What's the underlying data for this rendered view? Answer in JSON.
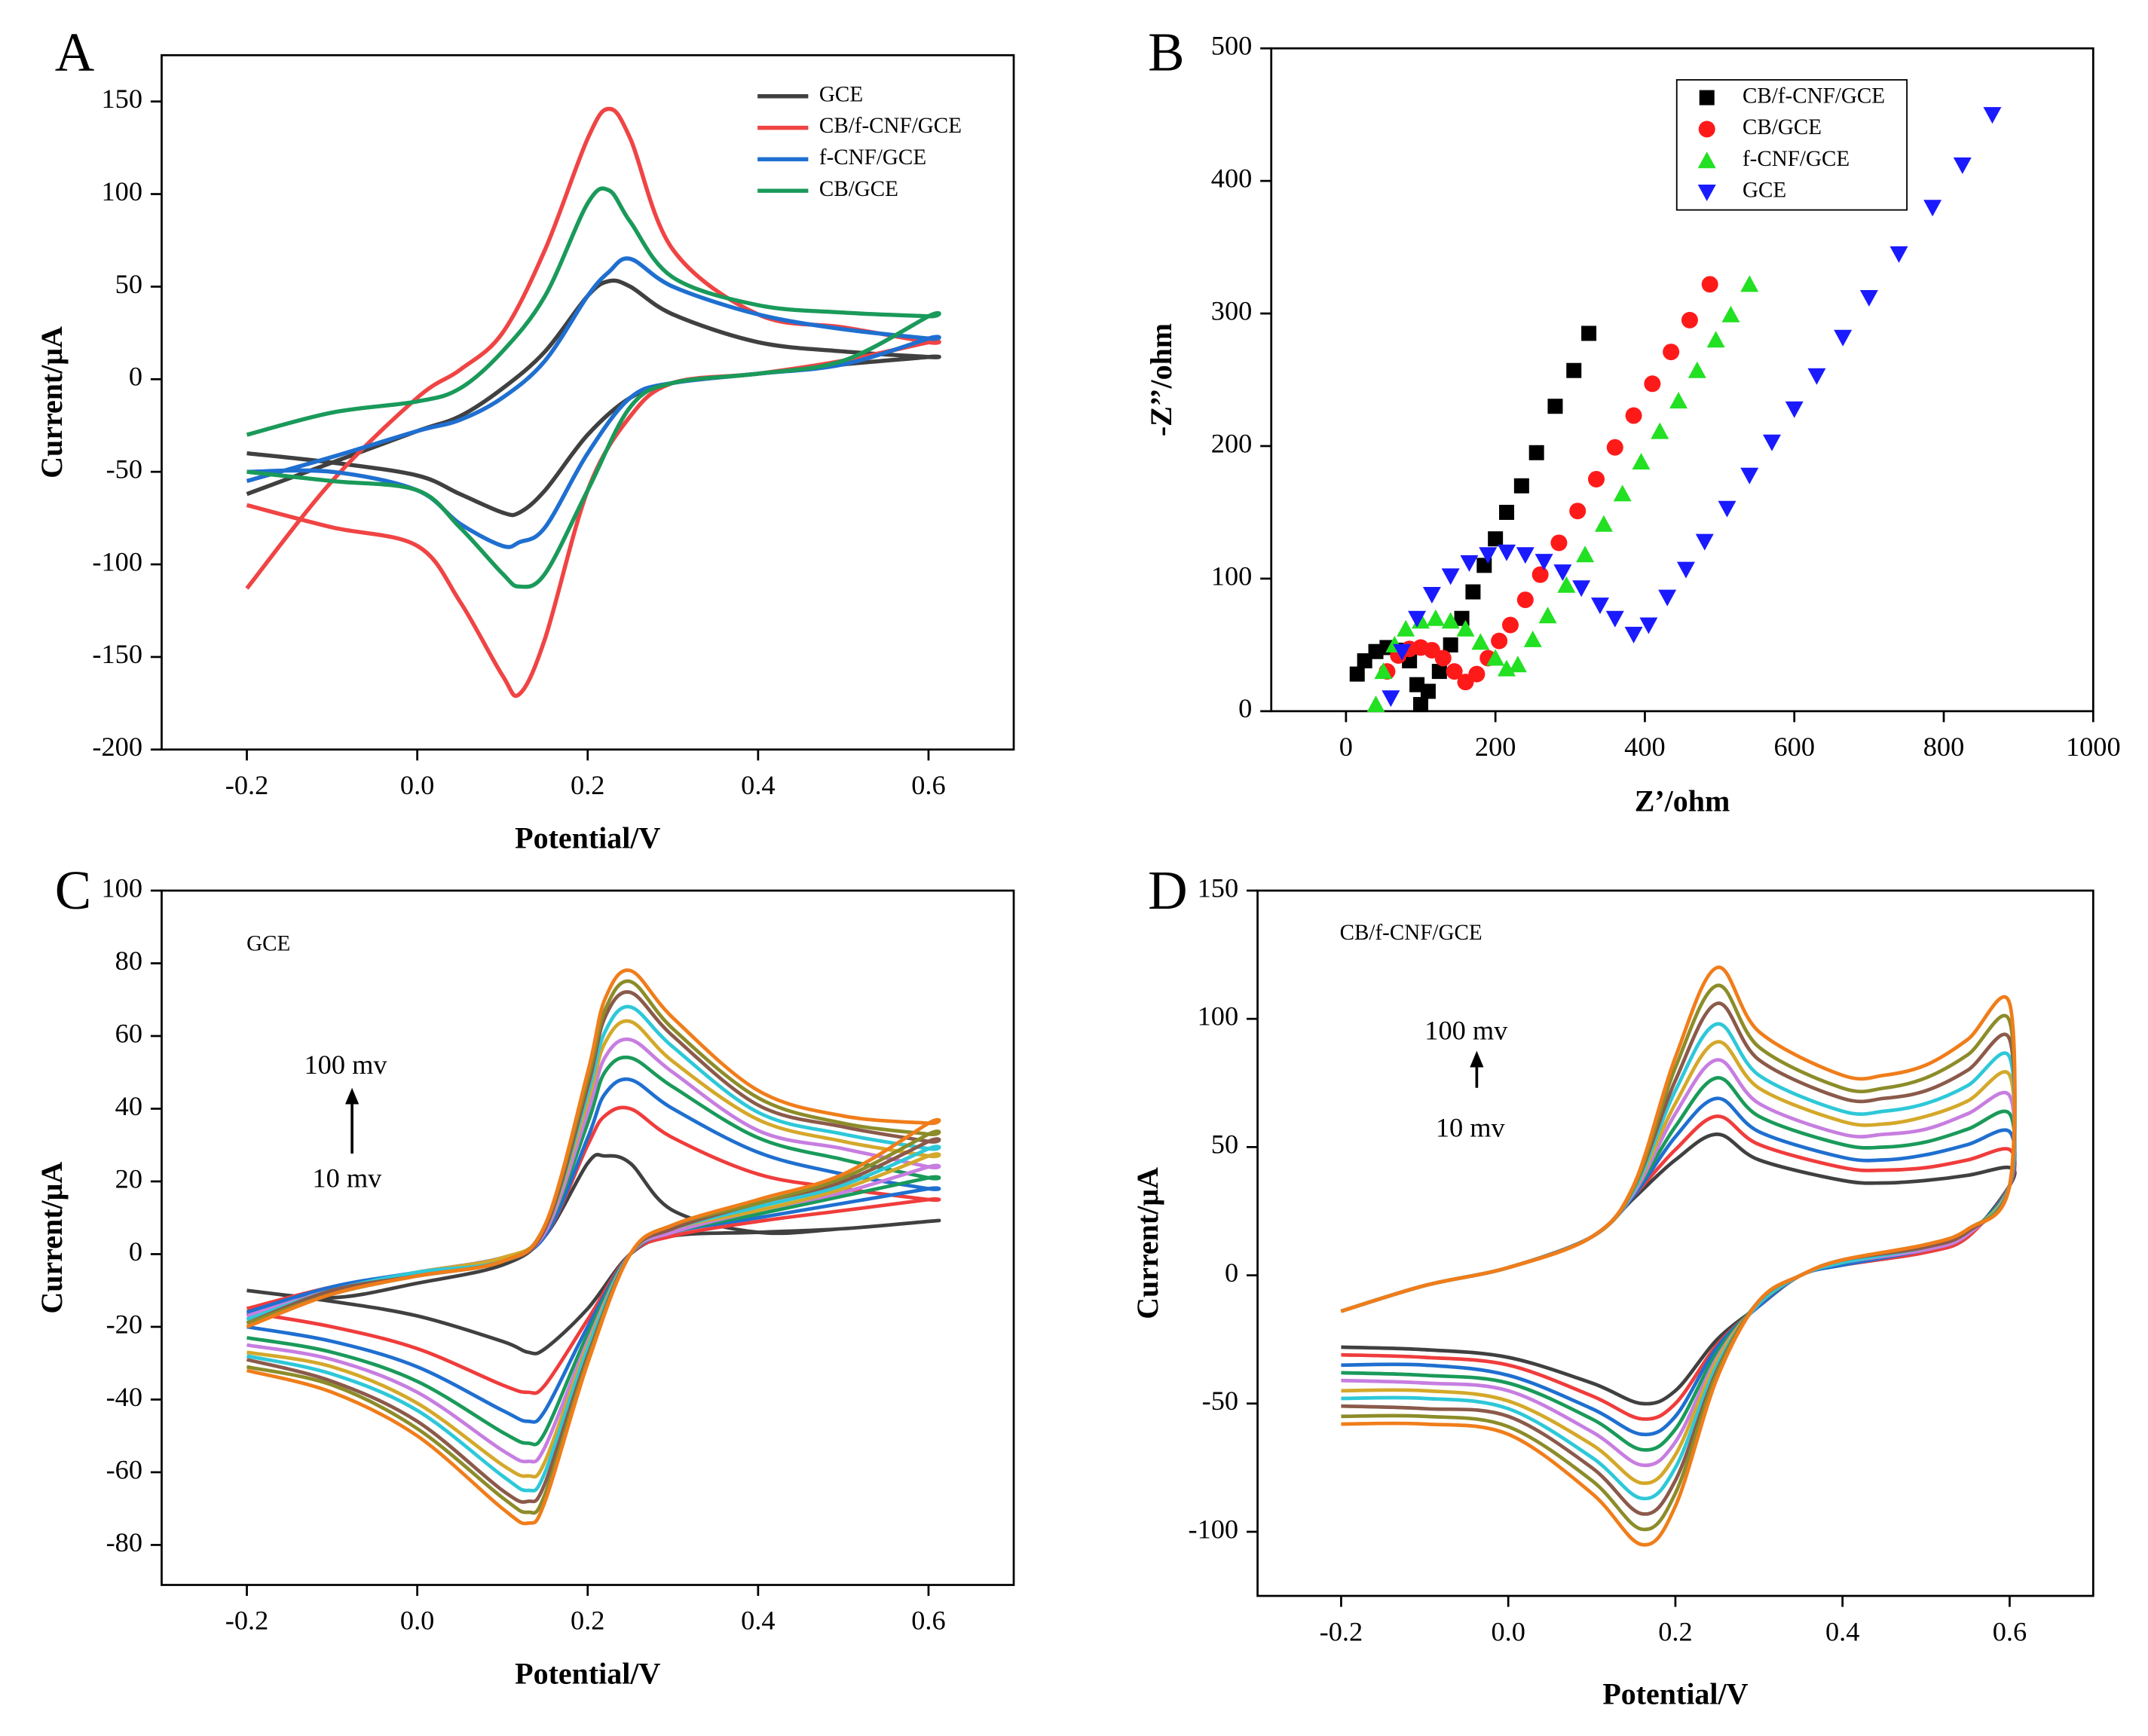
{
  "chart_data": [
    {
      "type": "line",
      "panel": "A",
      "xlabel": "Potential/V",
      "ylabel": "Current/μA",
      "legend": "upper right",
      "x": [
        -0.2,
        -0.1,
        0,
        0.05,
        0.1,
        0.15,
        0.2,
        0.225,
        0.25,
        0.3,
        0.4,
        0.5,
        0.6,
        0.6,
        0.5,
        0.4,
        0.3,
        0.25,
        0.2,
        0.15,
        0.12,
        0.1,
        0.05,
        0,
        -0.1,
        -0.2
      ],
      "xlim": [
        -0.3,
        0.7
      ],
      "xticks": [
        -0.2,
        {
          "value": 0,
          "label": "0.0"
        },
        0.2,
        0.4,
        0.6
      ],
      "ylim": [
        -200,
        175
      ],
      "yticks": [
        -200,
        -150,
        -100,
        -50,
        0,
        50,
        100,
        150
      ],
      "series": [
        {
          "name": "GCE",
          "color": "#404040",
          "values": [
            -62,
            -45,
            -28,
            -20,
            -5,
            15,
            45,
            53,
            50,
            35,
            20,
            15,
            12,
            12,
            8,
            3,
            -2,
            -10,
            -30,
            -60,
            -72,
            -72,
            -62,
            -52,
            -45,
            -40
          ]
        },
        {
          "name": "CB/f-CNF/GCE",
          "color": "#f04444",
          "values": [
            -113,
            -55,
            -10,
            5,
            25,
            70,
            130,
            146,
            130,
            70,
            35,
            28,
            20,
            20,
            10,
            3,
            -2,
            -20,
            -60,
            -140,
            -170,
            -160,
            -120,
            -90,
            -80,
            -68
          ]
        },
        {
          "name": "f-CNF/GCE",
          "color": "#1f6fd0",
          "values": [
            -55,
            -42,
            -28,
            -22,
            -10,
            10,
            45,
            58,
            65,
            50,
            35,
            27,
            22,
            22,
            8,
            3,
            -2,
            -10,
            -40,
            -80,
            -88,
            -90,
            -78,
            -60,
            -50,
            -50
          ]
        },
        {
          "name": "CB/GCE",
          "color": "#1a9a5a",
          "values": [
            -30,
            -18,
            -12,
            -5,
            15,
            45,
            95,
            102,
            85,
            55,
            40,
            36,
            34,
            34,
            10,
            3,
            -2,
            -15,
            -60,
            -105,
            -112,
            -105,
            -80,
            -60,
            -55,
            -50
          ]
        }
      ]
    },
    {
      "type": "scatter",
      "panel": "B",
      "xlabel": "Z’/ohm",
      "ylabel": "-Z’’/ohm",
      "legend": "upper right",
      "xlim": [
        -100,
        1000
      ],
      "xticks": [
        0,
        200,
        400,
        600,
        800,
        1000
      ],
      "ylim": [
        0,
        500
      ],
      "yticks": [
        0,
        100,
        200,
        300,
        400,
        500
      ],
      "series": [
        {
          "name": "CB/f-CNF/GCE",
          "color": "#000000",
          "marker": "square",
          "x": [
            15,
            25,
            40,
            55,
            70,
            85,
            95,
            100,
            110,
            125,
            140,
            155,
            170,
            185,
            200,
            215,
            235,
            255,
            280,
            305,
            325
          ],
          "values": [
            28,
            38,
            45,
            48,
            46,
            38,
            20,
            5,
            15,
            30,
            50,
            70,
            90,
            110,
            130,
            150,
            170,
            195,
            230,
            257,
            285
          ]
        },
        {
          "name": "CB/GCE",
          "color": "#ff1a1a",
          "marker": "circle",
          "x": [
            55,
            70,
            85,
            100,
            115,
            130,
            145,
            160,
            175,
            190,
            205,
            220,
            240,
            260,
            285,
            310,
            335,
            360,
            385,
            410,
            435,
            460,
            487
          ],
          "values": [
            30,
            42,
            47,
            48,
            46,
            40,
            30,
            22,
            28,
            40,
            53,
            65,
            84,
            103,
            127,
            151,
            175,
            199,
            223,
            247,
            271,
            295,
            322
          ]
        },
        {
          "name": "f-CNF/GCE",
          "color": "#22e022",
          "marker": "triangle",
          "x": [
            40,
            50,
            65,
            80,
            100,
            120,
            140,
            160,
            180,
            200,
            215,
            230,
            250,
            270,
            295,
            320,
            345,
            370,
            395,
            420,
            445,
            470,
            495,
            515,
            540
          ],
          "values": [
            5,
            30,
            50,
            62,
            68,
            70,
            68,
            62,
            52,
            40,
            32,
            35,
            54,
            72,
            95,
            118,
            141,
            164,
            188,
            211,
            234,
            257,
            280,
            299,
            322
          ]
        },
        {
          "name": "GCE",
          "color": "#1a1aff",
          "marker": "triangle-down",
          "x": [
            60,
            75,
            95,
            115,
            140,
            165,
            190,
            215,
            240,
            265,
            290,
            315,
            340,
            360,
            385,
            405,
            430,
            455,
            480,
            510,
            540,
            570,
            600,
            630,
            665,
            700,
            740,
            785,
            825,
            865
          ],
          "values": [
            10,
            45,
            70,
            88,
            102,
            112,
            118,
            120,
            118,
            113,
            105,
            93,
            80,
            70,
            58,
            65,
            86,
            107,
            128,
            153,
            178,
            203,
            228,
            253,
            282,
            312,
            345,
            380,
            412,
            450
          ]
        }
      ]
    },
    {
      "type": "line",
      "panel": "C",
      "xlabel": "Potential/V",
      "ylabel": "Current/μA",
      "annotation": "GCE",
      "rate_high": "100 mv",
      "rate_low": "10 mv",
      "x": [
        -0.2,
        -0.1,
        0,
        0.1,
        0.15,
        0.2,
        0.22,
        0.25,
        0.3,
        0.4,
        0.5,
        0.6,
        0.6,
        0.5,
        0.4,
        0.3,
        0.25,
        0.2,
        0.15,
        0.13,
        0.1,
        0,
        -0.1,
        -0.2
      ],
      "xlim": [
        -0.3,
        0.7
      ],
      "xticks": [
        -0.2,
        {
          "value": 0,
          "label": "0.0"
        },
        0.2,
        0.4,
        0.6
      ],
      "ylim": [
        -91,
        100
      ],
      "yticks": [
        -80,
        -60,
        -40,
        -20,
        0,
        20,
        40,
        60,
        80,
        100
      ],
      "series": [
        {
          "color": "#404040",
          "values": [
            -10,
            -12,
            -8,
            -3,
            5,
            25,
            27,
            25,
            12,
            6,
            7,
            9,
            9,
            7,
            6,
            5,
            0,
            -15,
            -26,
            -27,
            -24,
            -17,
            -13,
            -10
          ]
        },
        {
          "color": "#f03c3c",
          "values": [
            -15,
            -9,
            -5,
            -1,
            5,
            30,
            38,
            40,
            32,
            22,
            18,
            15,
            15,
            12,
            9,
            5,
            0,
            -18,
            -36,
            -38,
            -36,
            -26,
            -20,
            -16
          ]
        },
        {
          "color": "#1f6fd0",
          "values": [
            -16,
            -9,
            -5,
            -1,
            5,
            32,
            44,
            48,
            40,
            28,
            22,
            18,
            18,
            14,
            10,
            6,
            0,
            -20,
            -43,
            -46,
            -43,
            -31,
            -24,
            -20
          ]
        },
        {
          "color": "#1a9a5a",
          "values": [
            -17,
            -10,
            -5,
            -1,
            6,
            36,
            50,
            54,
            46,
            32,
            26,
            21,
            21,
            16,
            11,
            6,
            0,
            -22,
            -49,
            -52,
            -49,
            -35,
            -27,
            -23
          ]
        },
        {
          "color": "#c77ee0",
          "values": [
            -17,
            -10,
            -5,
            -1,
            6,
            39,
            54,
            59,
            50,
            34,
            29,
            24,
            24,
            17,
            12,
            6,
            0,
            -24,
            -53,
            -57,
            -54,
            -38,
            -29,
            -25
          ]
        },
        {
          "color": "#d4a82a",
          "values": [
            -18,
            -10,
            -5,
            -1,
            7,
            42,
            58,
            64,
            53,
            37,
            31,
            27,
            27,
            18,
            12,
            7,
            0,
            -25,
            -57,
            -61,
            -58,
            -41,
            -31,
            -27
          ]
        },
        {
          "color": "#2ec8d8",
          "values": [
            -18,
            -10,
            -5,
            -2,
            7,
            44,
            61,
            68,
            57,
            39,
            33,
            29,
            29,
            19,
            13,
            7,
            0,
            -26,
            -60,
            -65,
            -61,
            -43,
            -33,
            -28
          ]
        },
        {
          "color": "#8b5a4a",
          "values": [
            -19,
            -10,
            -6,
            -2,
            7,
            46,
            65,
            72,
            60,
            41,
            35,
            31,
            31,
            20,
            14,
            7,
            0,
            -28,
            -63,
            -68,
            -65,
            -46,
            -35,
            -29
          ]
        },
        {
          "color": "#8c8c2a",
          "values": [
            -19,
            -11,
            -6,
            -2,
            8,
            48,
            67,
            75,
            62,
            43,
            36,
            33,
            33,
            21,
            14,
            8,
            0,
            -29,
            -66,
            -71,
            -67,
            -48,
            -36,
            -31
          ]
        },
        {
          "color": "#f07d1a",
          "values": [
            -20,
            -11,
            -6,
            -2,
            8,
            50,
            70,
            78,
            65,
            45,
            38,
            36,
            36,
            22,
            15,
            8,
            0,
            -30,
            -68,
            -74,
            -70,
            -50,
            -38,
            -32
          ]
        }
      ]
    },
    {
      "type": "line",
      "panel": "D",
      "xlabel": "Potential/V",
      "ylabel": "Current/μA",
      "annotation": "CB/f-CNF/GCE",
      "rate_high": "100 mv",
      "rate_low": "10 mv",
      "x": [
        -0.2,
        -0.1,
        0,
        0.1,
        0.15,
        0.2,
        0.25,
        0.3,
        0.4,
        0.45,
        0.5,
        0.55,
        0.6,
        0.6,
        0.55,
        0.5,
        0.4,
        0.35,
        0.3,
        0.25,
        0.2,
        0.16,
        0.1,
        0,
        -0.1,
        -0.2
      ],
      "xlim": [
        -0.3,
        0.7
      ],
      "xticks": [
        -0.2,
        {
          "value": 0,
          "label": "0.0"
        },
        0.2,
        0.4,
        0.6
      ],
      "ylim": [
        -125,
        150
      ],
      "yticks": [
        -100,
        -50,
        0,
        50,
        100,
        150
      ],
      "series": [
        {
          "color": "#404040",
          "values": [
            -14,
            -4,
            3,
            15,
            30,
            45,
            55,
            45,
            37,
            36,
            37,
            39,
            42,
            35,
            15,
            9,
            4,
            0,
            -12,
            -25,
            -45,
            -50,
            -42,
            -32,
            -29,
            -28
          ]
        },
        {
          "color": "#f03c3c",
          "values": [
            -14,
            -4,
            3,
            15,
            31,
            49,
            62,
            51,
            42,
            41,
            42,
            45,
            49,
            35,
            15,
            9,
            4,
            0,
            -12,
            -27,
            -50,
            -56,
            -47,
            -35,
            -32,
            -31
          ]
        },
        {
          "color": "#1f6fd0",
          "values": [
            -14,
            -4,
            3,
            15,
            31,
            54,
            69,
            56,
            46,
            45,
            47,
            51,
            56,
            35,
            16,
            10,
            4,
            0,
            -12,
            -28,
            -55,
            -62,
            -52,
            -39,
            -35,
            -35
          ]
        },
        {
          "color": "#1a9a5a",
          "values": [
            -14,
            -4,
            3,
            15,
            32,
            58,
            77,
            62,
            51,
            50,
            52,
            57,
            63,
            35,
            16,
            10,
            5,
            0,
            -11,
            -30,
            -60,
            -68,
            -56,
            -42,
            -39,
            -38
          ]
        },
        {
          "color": "#c77ee0",
          "values": [
            -14,
            -4,
            3,
            15,
            32,
            63,
            84,
            67,
            55,
            55,
            57,
            63,
            70,
            35,
            16,
            10,
            5,
            0,
            -11,
            -32,
            -65,
            -74,
            -61,
            -45,
            -42,
            -41
          ]
        },
        {
          "color": "#d4a82a",
          "values": [
            -14,
            -4,
            3,
            15,
            33,
            67,
            91,
            73,
            60,
            59,
            62,
            68,
            78,
            35,
            17,
            11,
            5,
            0,
            -11,
            -33,
            -70,
            -81,
            -66,
            -49,
            -45,
            -45
          ]
        },
        {
          "color": "#2ec8d8",
          "values": [
            -14,
            -4,
            3,
            15,
            33,
            72,
            98,
            78,
            64,
            64,
            67,
            74,
            85,
            35,
            17,
            11,
            5,
            0,
            -11,
            -35,
            -75,
            -87,
            -71,
            -52,
            -48,
            -48
          ]
        },
        {
          "color": "#8b5a4a",
          "values": [
            -14,
            -4,
            3,
            15,
            34,
            76,
            106,
            84,
            69,
            69,
            72,
            80,
            92,
            35,
            17,
            11,
            6,
            0,
            -10,
            -37,
            -80,
            -93,
            -75,
            -55,
            -52,
            -51
          ]
        },
        {
          "color": "#8c8c2a",
          "values": [
            -14,
            -4,
            3,
            15,
            34,
            81,
            113,
            89,
            73,
            73,
            77,
            86,
            99,
            35,
            18,
            12,
            6,
            0,
            -10,
            -38,
            -85,
            -99,
            -80,
            -59,
            -55,
            -55
          ]
        },
        {
          "color": "#f07d1a",
          "values": [
            -14,
            -4,
            3,
            15,
            35,
            85,
            120,
            95,
            78,
            78,
            82,
            92,
            106,
            35,
            18,
            12,
            6,
            0,
            -10,
            -40,
            -90,
            -105,
            -85,
            -62,
            -58,
            -58
          ]
        }
      ]
    }
  ]
}
